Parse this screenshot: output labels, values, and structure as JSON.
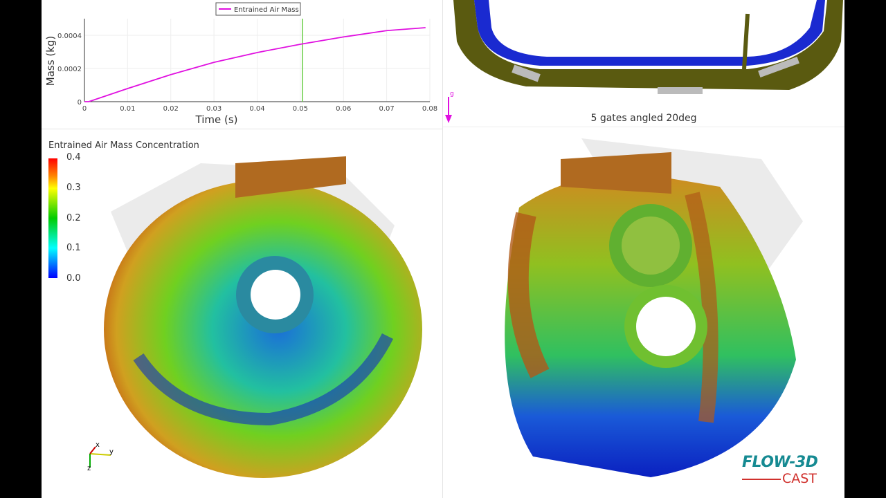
{
  "chart_data": {
    "type": "line",
    "xlabel": "Time (s)",
    "ylabel": "Mass (kg)",
    "xlim": [
      0,
      0.08
    ],
    "ylim": [
      0,
      0.0005
    ],
    "x_ticks": [
      "0",
      "0.01",
      "0.02",
      "0.03",
      "0.04",
      "0.05",
      "0.06",
      "0.07",
      "0.08"
    ],
    "y_ticks": [
      "0",
      "0.0002",
      "0.0004"
    ],
    "grid": true,
    "legend_position": "top-center",
    "series": [
      {
        "name": "Entrained Air Mass",
        "color": "#e010e0",
        "x": [
          0,
          0.001,
          0.01,
          0.02,
          0.03,
          0.04,
          0.05,
          0.06,
          0.07,
          0.079
        ],
        "y": [
          0,
          0,
          7.9e-05,
          0.000163,
          0.000237,
          0.000296,
          0.000346,
          0.00039,
          0.000428,
          0.000446
        ]
      }
    ],
    "current_time_marker": {
      "x": 0.0505,
      "color": "#66cc44"
    }
  },
  "colorbar": {
    "title": "Entrained Air Mass Concentration",
    "labels": [
      "0.4",
      "0.3",
      "0.2",
      "0.1",
      "0.0"
    ],
    "colormap": [
      "#ff0000",
      "#ffff00",
      "#00cc00",
      "#00ffff",
      "#0000ff"
    ]
  },
  "caption": "5 gates angled 20deg",
  "axes_triad": {
    "x": "x",
    "y": "y",
    "z": "z"
  },
  "gravity_label": "g",
  "logo": {
    "line1": "FLOW-3D",
    "line2": "CAST"
  }
}
